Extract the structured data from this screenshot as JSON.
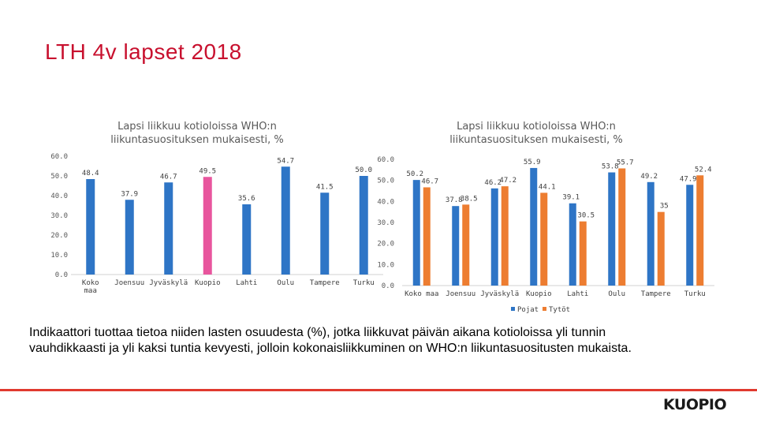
{
  "slide": {
    "title": "LTH 4v lapset 2018",
    "description": "Indikaattori tuottaa tietoa niiden lasten osuudesta (%), jotka liikkuvat päivän aikana kotioloissa yli tunnin vauhdikkaasti ja yli kaksi tuntia kevyesti, jolloin kokonaisliikkuminen on WHO:n liikuntasuositusten mukaista.",
    "logo": "KUOPIO"
  },
  "colors": {
    "title": "#c8102e",
    "blue": "#2e75c6",
    "orange": "#ed7d31",
    "pink": "#e8559d",
    "accent_line": "#e03a2f"
  },
  "chart_data": [
    {
      "type": "bar",
      "title_line1": "Lapsi liikkuu kotioloissa WHO:n",
      "title_line2": "liikuntasuosituksen mukaisesti, %",
      "categories": [
        "Koko\nmaa",
        "Joensuu",
        "Jyväskylä",
        "Kuopio",
        "Lahti",
        "Oulu",
        "Tampere",
        "Turku"
      ],
      "values": [
        48.4,
        37.9,
        46.7,
        49.5,
        35.6,
        54.7,
        41.5,
        50.0
      ],
      "labels": [
        "48.4",
        "37.9",
        "46.7",
        "49.5",
        "35.6",
        "54.7",
        "41.5",
        "50.0"
      ],
      "highlight_index": 3,
      "yticks": [
        "0.0",
        "10.0",
        "20.0",
        "30.0",
        "40.0",
        "50.0",
        "60.0"
      ],
      "ylim": [
        0,
        60
      ],
      "grid": false
    },
    {
      "type": "bar",
      "title_line1": "Lapsi liikkuu kotioloissa WHO:n",
      "title_line2": "liikuntasuosituksen mukaisesti, %",
      "categories": [
        "Koko maa",
        "Joensuu",
        "Jyväskylä",
        "Kuopio",
        "Lahti",
        "Oulu",
        "Tampere",
        "Turku"
      ],
      "series": [
        {
          "name": "Pojat",
          "values": [
            50.2,
            37.8,
            46.2,
            55.9,
            39.1,
            53.8,
            49.2,
            47.9
          ],
          "labels": [
            "50.2",
            "37.8",
            "46.2",
            "55.9",
            "39.1",
            "53.8",
            "49.2",
            "47.9"
          ]
        },
        {
          "name": "Tytöt",
          "values": [
            46.7,
            38.5,
            47.2,
            44.1,
            30.5,
            55.7,
            35.0,
            52.4
          ],
          "labels": [
            "46.7",
            "38.5",
            "47.2",
            "44.1",
            "30.5",
            "55.7",
            "35",
            "52.4"
          ]
        }
      ],
      "yticks": [
        "0.0",
        "10.0",
        "20.0",
        "30.0",
        "40.0",
        "50.0",
        "60.0"
      ],
      "ylim": [
        0,
        60
      ],
      "legend": "bottom",
      "grid": false
    }
  ]
}
